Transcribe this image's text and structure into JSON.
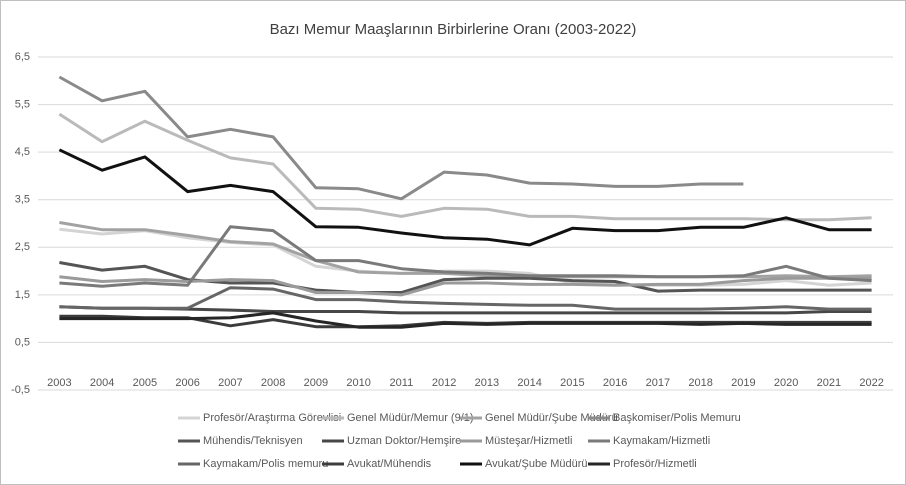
{
  "chart_data": {
    "type": "line",
    "title": "Bazı Memur Maaşlarının Birbirlerine Oranı (2003-2022)",
    "categories": [
      "2003",
      "2004",
      "2005",
      "2006",
      "2007",
      "2008",
      "2009",
      "2010",
      "2011",
      "2012",
      "2013",
      "2014",
      "2015",
      "2016",
      "2017",
      "2018",
      "2019",
      "2020",
      "2021",
      "2022"
    ],
    "ylim": [
      -0.5,
      6.5
    ],
    "yticks": [
      {
        "value": -0.5,
        "label": "-0,5"
      },
      {
        "value": 0.5,
        "label": "0,5"
      },
      {
        "value": 1.5,
        "label": "1,5"
      },
      {
        "value": 2.5,
        "label": "2,5"
      },
      {
        "value": 3.5,
        "label": "3,5"
      },
      {
        "value": 4.5,
        "label": "4,5"
      },
      {
        "value": 5.5,
        "label": "5,5"
      },
      {
        "value": 6.5,
        "label": "6,5"
      }
    ],
    "grid": true,
    "legend": "bottom",
    "series": [
      {
        "name": "Profesör/Araştırma Görevlisi",
        "color": "#d4d4d4",
        "values": [
          2.88,
          2.78,
          2.85,
          2.7,
          2.6,
          2.55,
          2.1,
          2.0,
          1.95,
          2.0,
          2.0,
          1.95,
          1.75,
          1.72,
          1.7,
          1.7,
          1.72,
          1.8,
          1.7,
          1.75
        ]
      },
      {
        "name": "Genel Müdür/Memur (9/1)",
        "color": "#bababa",
        "values": [
          5.3,
          4.72,
          5.15,
          4.75,
          4.38,
          4.25,
          3.32,
          3.3,
          3.15,
          3.32,
          3.3,
          3.15,
          3.15,
          3.1,
          3.1,
          3.1,
          3.1,
          3.08,
          3.08,
          3.12
        ]
      },
      {
        "name": "Genel Müdür/Şube Müdürü",
        "color": "#a2a2a2",
        "values": [
          3.02,
          2.87,
          2.87,
          2.75,
          2.62,
          2.57,
          2.22,
          1.98,
          1.95,
          1.95,
          1.9,
          1.88,
          1.88,
          1.88,
          1.88,
          1.88,
          1.88,
          1.9,
          1.88,
          1.9
        ]
      },
      {
        "name": "Başkomiser/Polis Memuru",
        "color": "#8a8a8a",
        "values": [
          6.08,
          5.58,
          5.78,
          4.82,
          4.98,
          4.82,
          3.75,
          3.73,
          3.52,
          4.08,
          4.02,
          3.85,
          3.83,
          3.78,
          3.78,
          3.83,
          3.83,
          null,
          null,
          null
        ]
      },
      {
        "name": "Mühendis/Teknisyen",
        "color": "#555555",
        "values": [
          2.18,
          2.02,
          2.1,
          1.82,
          1.75,
          1.75,
          1.6,
          1.55,
          1.55,
          1.82,
          1.85,
          1.85,
          1.8,
          1.78,
          1.58,
          1.6,
          1.6,
          1.6,
          1.6,
          1.6
        ]
      },
      {
        "name": "Uzman Doktor/Hemşire",
        "color": "#474747",
        "values": [
          1.25,
          1.22,
          1.22,
          1.2,
          1.18,
          1.15,
          1.15,
          1.15,
          1.12,
          1.12,
          1.12,
          1.12,
          1.12,
          1.12,
          1.12,
          1.12,
          1.12,
          1.12,
          1.15,
          1.15
        ]
      },
      {
        "name": "Müsteşar/Hizmetli",
        "color": "#9a9a9a",
        "values": [
          1.88,
          1.78,
          1.82,
          1.78,
          1.82,
          1.8,
          1.55,
          1.55,
          1.5,
          1.75,
          1.75,
          1.72,
          1.72,
          1.7,
          1.72,
          1.72,
          1.8,
          1.85,
          1.85,
          1.85
        ]
      },
      {
        "name": "Kaymakam/Hizmetli",
        "color": "#7a7a7a",
        "values": [
          1.75,
          1.68,
          1.75,
          1.7,
          2.93,
          2.85,
          2.22,
          2.22,
          2.05,
          1.98,
          1.95,
          1.9,
          1.9,
          1.9,
          1.88,
          1.88,
          1.9,
          2.1,
          1.85,
          1.8
        ]
      },
      {
        "name": "Kaymakam/Polis memuru",
        "color": "#666666",
        "values": [
          1.25,
          1.22,
          1.22,
          1.22,
          1.65,
          1.62,
          1.4,
          1.4,
          1.35,
          1.32,
          1.3,
          1.28,
          1.28,
          1.2,
          1.2,
          1.2,
          1.22,
          1.25,
          1.2,
          1.2
        ]
      },
      {
        "name": "Avukat/Mühendis",
        "color": "#3c3c3c",
        "values": [
          1.05,
          1.05,
          1.02,
          1.02,
          0.85,
          0.98,
          0.83,
          0.83,
          0.85,
          0.92,
          0.9,
          0.92,
          0.92,
          0.92,
          0.92,
          0.92,
          0.92,
          0.92,
          0.92,
          0.92
        ]
      },
      {
        "name": "Avukat/Şube Müdürü",
        "color": "#111111",
        "values": [
          4.55,
          4.12,
          4.4,
          3.67,
          3.8,
          3.67,
          2.93,
          2.92,
          2.8,
          2.7,
          2.67,
          2.55,
          2.9,
          2.85,
          2.85,
          2.92,
          2.92,
          3.12,
          2.87,
          2.87
        ]
      },
      {
        "name": "Profesör/Hizmetli",
        "color": "#262626",
        "values": [
          1.0,
          1.0,
          1.0,
          1.0,
          1.02,
          1.12,
          0.95,
          0.82,
          0.82,
          0.9,
          0.88,
          0.9,
          0.9,
          0.9,
          0.9,
          0.88,
          0.9,
          0.88,
          0.88,
          0.88
        ]
      }
    ]
  }
}
